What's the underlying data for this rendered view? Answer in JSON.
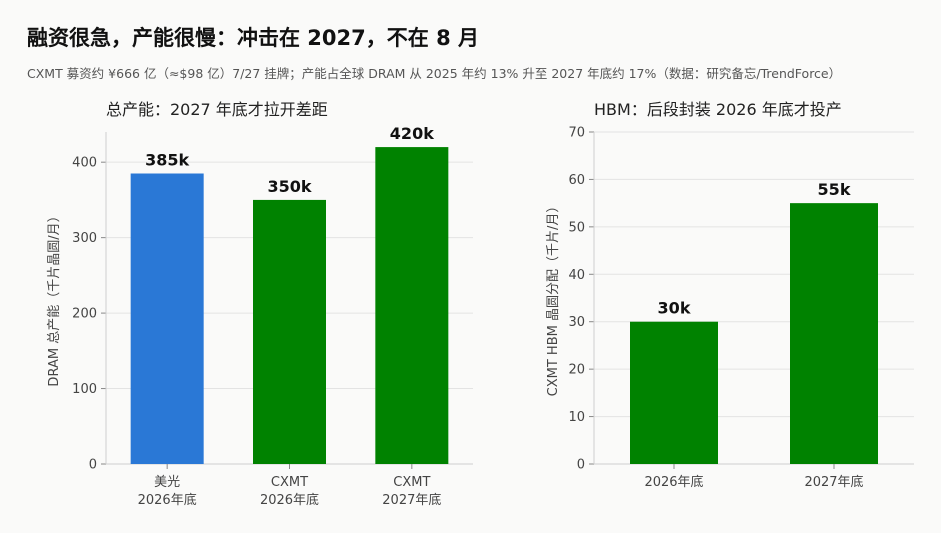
{
  "title": "融资很急，产能很慢：冲击在 2027，不在 8 月",
  "subtitle": "CXMT 募资约 ¥666 亿（≈$98 亿）7/27 挂牌；产能占全球 DRAM 从 2025 年约 13% 升至 2027 年底约 17%（数据：研究备忘/TrendForce）",
  "chart_data": [
    {
      "type": "bar",
      "title": "总产能：2027 年底才拉开差距",
      "ylabel": "DRAM 总产能（千片晶圆/月）",
      "categories": [
        [
          "美光",
          "2026年底"
        ],
        [
          "CXMT",
          "2026年底"
        ],
        [
          "CXMT",
          "2027年底"
        ]
      ],
      "values": [
        385,
        350,
        420
      ],
      "data_labels": [
        "385k",
        "350k",
        "420k"
      ],
      "bar_colors": [
        "#2a78d6",
        "#008200",
        "#008200"
      ],
      "ylim": [
        0,
        440
      ],
      "yticks": [
        0,
        100,
        200,
        300,
        400
      ],
      "grid": true
    },
    {
      "type": "bar",
      "title": "HBM：后段封装 2026 年底才投产",
      "ylabel": "CXMT HBM 晶圆分配（千片/月）",
      "categories": [
        [
          "2026年底"
        ],
        [
          "2027年底"
        ]
      ],
      "values": [
        30,
        55
      ],
      "data_labels": [
        "30k",
        "55k"
      ],
      "bar_colors": [
        "#008200",
        "#008200"
      ],
      "ylim": [
        0,
        70
      ],
      "yticks": [
        0,
        10,
        20,
        30,
        40,
        50,
        60,
        70
      ],
      "grid": true
    }
  ]
}
